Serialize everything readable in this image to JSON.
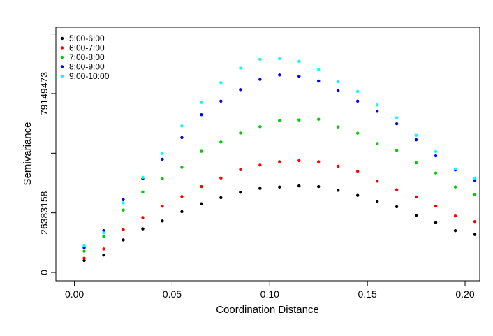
{
  "chart_data": {
    "type": "scatter",
    "title": "",
    "xlabel": "Coordination Distance",
    "ylabel": "Semivariance",
    "xlim": [
      -0.0095,
      0.2075
    ],
    "ylim": [
      -3700000,
      108500000
    ],
    "x_ticks": [
      {
        "value": 0.0,
        "label": "0.00"
      },
      {
        "value": 0.05,
        "label": "0.05"
      },
      {
        "value": 0.1,
        "label": "0.10"
      },
      {
        "value": 0.15,
        "label": "0.15"
      },
      {
        "value": 0.2,
        "label": "0.20"
      }
    ],
    "y_ticks": [
      {
        "value": 0,
        "label": "0"
      },
      {
        "value": 26383158,
        "label": "26383158"
      },
      {
        "value": 52766315,
        "label": ""
      },
      {
        "value": 79149473,
        "label": "79149473"
      },
      {
        "value": 105532630,
        "label": ""
      }
    ],
    "x": [
      0.005,
      0.015,
      0.025,
      0.035,
      0.045,
      0.055,
      0.065,
      0.075,
      0.085,
      0.095,
      0.105,
      0.115,
      0.125,
      0.135,
      0.145,
      0.155,
      0.165,
      0.175,
      0.185,
      0.195,
      0.205
    ],
    "series": [
      {
        "name": "5:00-6:00",
        "color": "#000000",
        "values": [
          5300000,
          7700000,
          14400000,
          19300000,
          22800000,
          26900000,
          30400000,
          33100000,
          35500000,
          37200000,
          37800000,
          38300000,
          38000000,
          36400000,
          34100000,
          31400000,
          29100000,
          25300000,
          22100000,
          18500000,
          16800000
        ]
      },
      {
        "name": "6:00-7:00",
        "color": "#ff0000",
        "values": [
          6300000,
          10400000,
          19000000,
          24300000,
          29300000,
          33600000,
          38000000,
          41800000,
          45500000,
          47500000,
          49000000,
          49500000,
          49000000,
          47000000,
          44800000,
          40400000,
          36600000,
          33400000,
          29400000,
          25000000,
          22500000
        ]
      },
      {
        "name": "7:00-8:00",
        "color": "#00cc00",
        "values": [
          9400000,
          16000000,
          27600000,
          35600000,
          41500000,
          46500000,
          53600000,
          57700000,
          61700000,
          64500000,
          67200000,
          67500000,
          67800000,
          64400000,
          61600000,
          57000000,
          54000000,
          48500000,
          44000000,
          37800000,
          34400000
        ]
      },
      {
        "name": "8:00-9:00",
        "color": "#0000ff",
        "values": [
          11000000,
          18500000,
          32200000,
          41500000,
          50100000,
          59700000,
          69800000,
          75800000,
          80900000,
          85400000,
          87400000,
          86800000,
          84700000,
          80400000,
          75800000,
          71300000,
          65800000,
          58700000,
          51600000,
          45400000,
          40700000
        ]
      },
      {
        "name": "9:00-10:00",
        "color": "#00ffff",
        "values": [
          11800000,
          17500000,
          30800000,
          42100000,
          52600000,
          64800000,
          75200000,
          84000000,
          90400000,
          94300000,
          94600000,
          93400000,
          89700000,
          84400000,
          80100000,
          74100000,
          68500000,
          60700000,
          53500000,
          45800000,
          41800000
        ]
      }
    ],
    "legend_position": "top-left",
    "grid": false
  }
}
